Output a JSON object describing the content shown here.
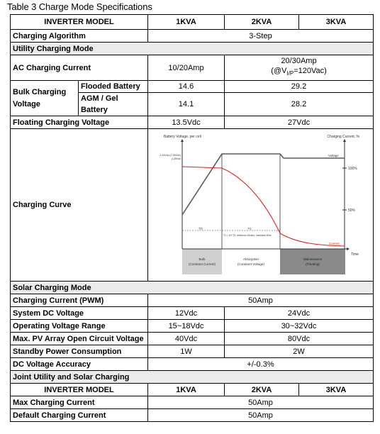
{
  "caption": "Table 3 Charge Mode Specifications",
  "header": {
    "model_label": "INVERTER MODEL",
    "m1": "1KVA",
    "m2": "2KVA",
    "m3": "3KVA"
  },
  "charging_algorithm": {
    "label": "Charging Algorithm",
    "value": "3-Step"
  },
  "utility_section": "Utility Charging Mode",
  "ac_charging_current": {
    "label": "AC Charging Current",
    "v1": "10/20Amp",
    "v23_line1": "20/30Amp",
    "v23_line2": "(@V",
    "v23_sub": "I/P",
    "v23_line2_end": "=120Vac)"
  },
  "bulk": {
    "label_line1": "Bulk Charging",
    "label_line2": "Voltage",
    "flooded_label": "Flooded Battery",
    "flooded_v1": "14.6",
    "flooded_v23": "29.2",
    "agm_label_line1": "AGM / Gel",
    "agm_label_line2": "Battery",
    "agm_v1": "14.1",
    "agm_v23": "28.2"
  },
  "floating": {
    "label": "Floating Charging Voltage",
    "v1": "13.5Vdc",
    "v23": "27Vdc"
  },
  "curve": {
    "label": "Charging Curve",
    "left_axis_title": "Battery Voltage, per cell",
    "right_axis_title": "Charging Current, %",
    "volt_mark1": "2.43Vdc (2.35Vdc)",
    "volt_mark2": "2.25Vdc",
    "voltage_label": "Voltage",
    "current_label": "Current",
    "pct_100": "100%",
    "pct_50": "50%",
    "t0": "T0",
    "t1": "T1",
    "t_note": "T1 = 10* T0, minimum 10mins, maximum 8hrs",
    "time_label": "Time",
    "bulk_line1": "Bulk",
    "bulk_line2": "(Constant Current)",
    "abs_line1": "Absorption",
    "abs_line2": "(Constant Voltage)",
    "maint_line1": "Maintenance",
    "maint_line2": "(Floating)",
    "colors": {
      "voltage_line": "#5a5a5a",
      "current_line": "#e02020",
      "bulk_fill": "#cfcfcf",
      "abs_fill": "#ffffff",
      "maint_fill": "#8a8a8a"
    }
  },
  "solar_section": "Solar Charging Mode",
  "solar_current": {
    "label": "Charging Current (PWM)",
    "value": "50Amp"
  },
  "system_dc": {
    "label": "System DC Voltage",
    "v1": "12Vdc",
    "v23": "24Vdc"
  },
  "op_voltage": {
    "label": "Operating Voltage Range",
    "v1": "15~18Vdc",
    "v23": "30~32Vdc"
  },
  "pv_voc": {
    "label": "Max. PV Array Open Circuit Voltage",
    "v1": "40Vdc",
    "v23": "80Vdc"
  },
  "standby": {
    "label": "Standby Power Consumption",
    "v1": "1W",
    "v23": "2W"
  },
  "dc_accuracy": {
    "label": "DC Voltage Accuracy",
    "value": "+/-0.3%"
  },
  "joint_section": "Joint Utility and Solar Charging",
  "header2": {
    "model_label": "INVERTER MODEL",
    "m1": "1KVA",
    "m2": "2KVA",
    "m3": "3KVA"
  },
  "max_charging": {
    "label": "Max Charging Current",
    "value": "50Amp"
  },
  "default_charging": {
    "label": "Default Charging Current",
    "value": "50Amp"
  }
}
